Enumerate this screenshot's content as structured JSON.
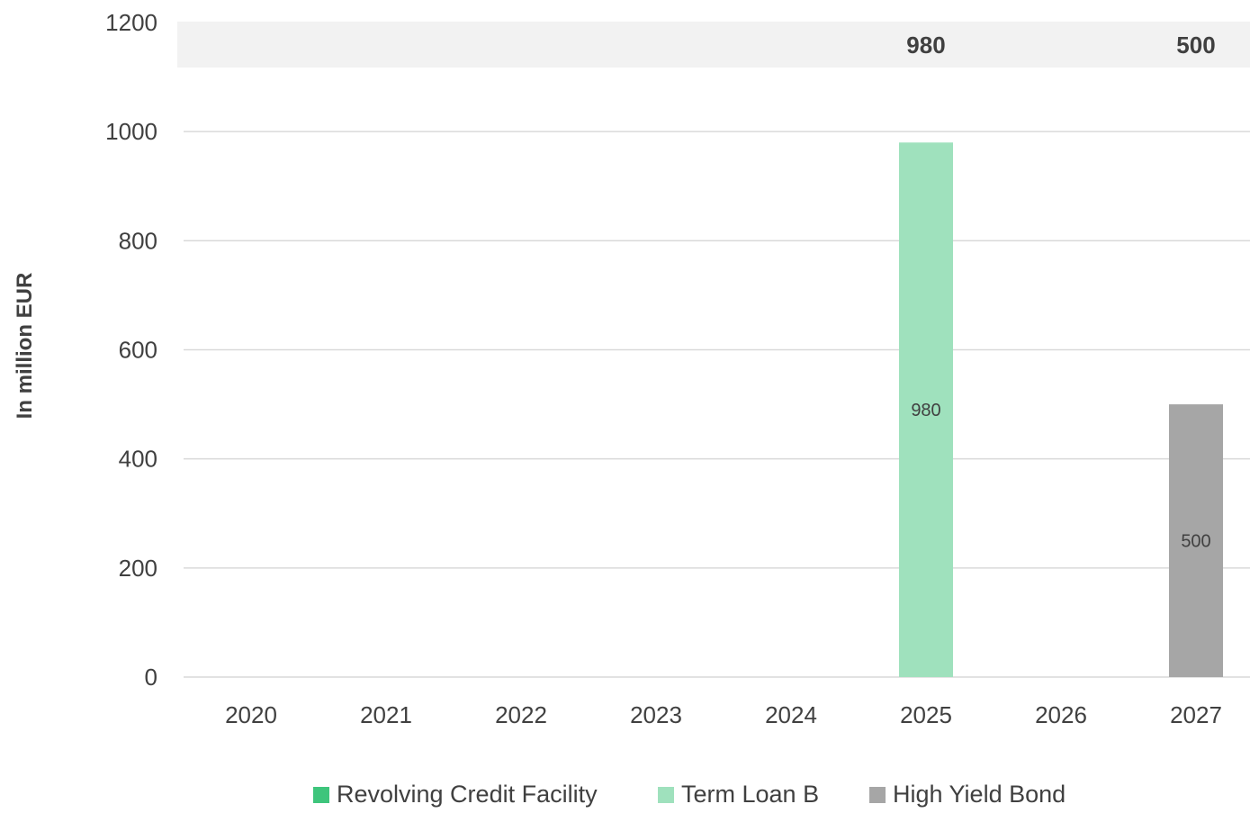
{
  "chart_data": {
    "type": "bar",
    "stacked": true,
    "categories": [
      "2020",
      "2021",
      "2022",
      "2023",
      "2024",
      "2025",
      "2026",
      "2027"
    ],
    "series": [
      {
        "name": "Revolving Credit Facility",
        "color": "#3EC57C",
        "values": [
          0,
          0,
          0,
          0,
          0,
          0,
          0,
          0
        ]
      },
      {
        "name": "Term Loan B",
        "color": "#9FE1BD",
        "values": [
          0,
          0,
          0,
          0,
          0,
          980,
          0,
          0
        ]
      },
      {
        "name": "High Yield Bond",
        "color": "#A6A6A6",
        "values": [
          0,
          0,
          0,
          0,
          0,
          0,
          0,
          500
        ]
      }
    ],
    "totals": [
      {
        "category": "2025",
        "label": "980"
      },
      {
        "category": "2027",
        "label": "500"
      }
    ],
    "data_labels": [
      {
        "category": "2025",
        "series": "Term Loan B",
        "label": "980"
      },
      {
        "category": "2027",
        "series": "High Yield Bond",
        "label": "500"
      }
    ],
    "ylabel": "In million EUR",
    "xlabel": "",
    "ylim": [
      0,
      1200
    ],
    "yticks": [
      "0",
      "200",
      "400",
      "600",
      "800",
      "1000",
      "1200"
    ],
    "grid": true,
    "legend_position": "bottom",
    "totals_band_color": "#F2F2F2"
  }
}
